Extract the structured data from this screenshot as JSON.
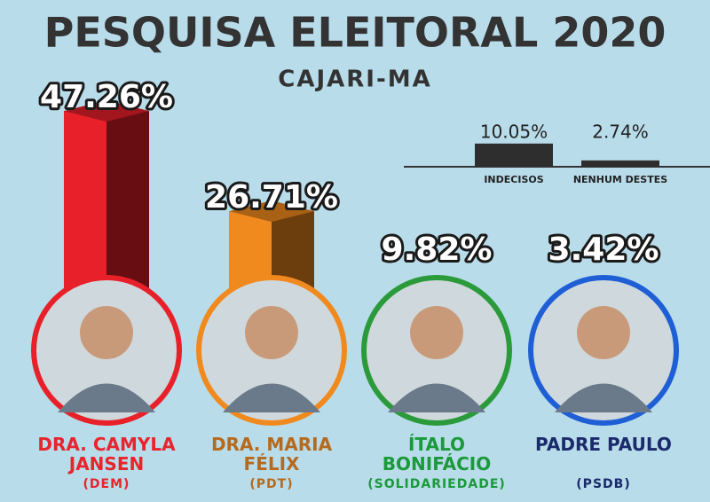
{
  "chart_data": [
    {
      "type": "bar",
      "title": "PESQUISA ELEITORAL 2020",
      "subtitle": "CAJARI-MA",
      "categories": [
        "DRA. CAMYLA JANSEN",
        "DRA. MARIA FÉLIX",
        "ÍTALO BONIFÁCIO",
        "PADRE PAULO"
      ],
      "parties": [
        "(DEM)",
        "(PDT)",
        "(SOLIDARIEDADE)",
        "(PSDB)"
      ],
      "values": [
        47.26,
        26.71,
        9.82,
        3.42
      ],
      "value_labels": [
        "47.26%",
        "26.71%",
        "9.82%",
        "3.42%"
      ],
      "colors": [
        "#e8202a",
        "#f08a1e",
        "#2a9a3a",
        "#1f5fd6"
      ]
    },
    {
      "type": "bar",
      "categories": [
        "INDECISOS",
        "NENHUM DESTES"
      ],
      "values": [
        10.05,
        2.74
      ],
      "value_labels": [
        "10.05%",
        "2.74%"
      ],
      "color": "#2e2e2e"
    }
  ]
}
